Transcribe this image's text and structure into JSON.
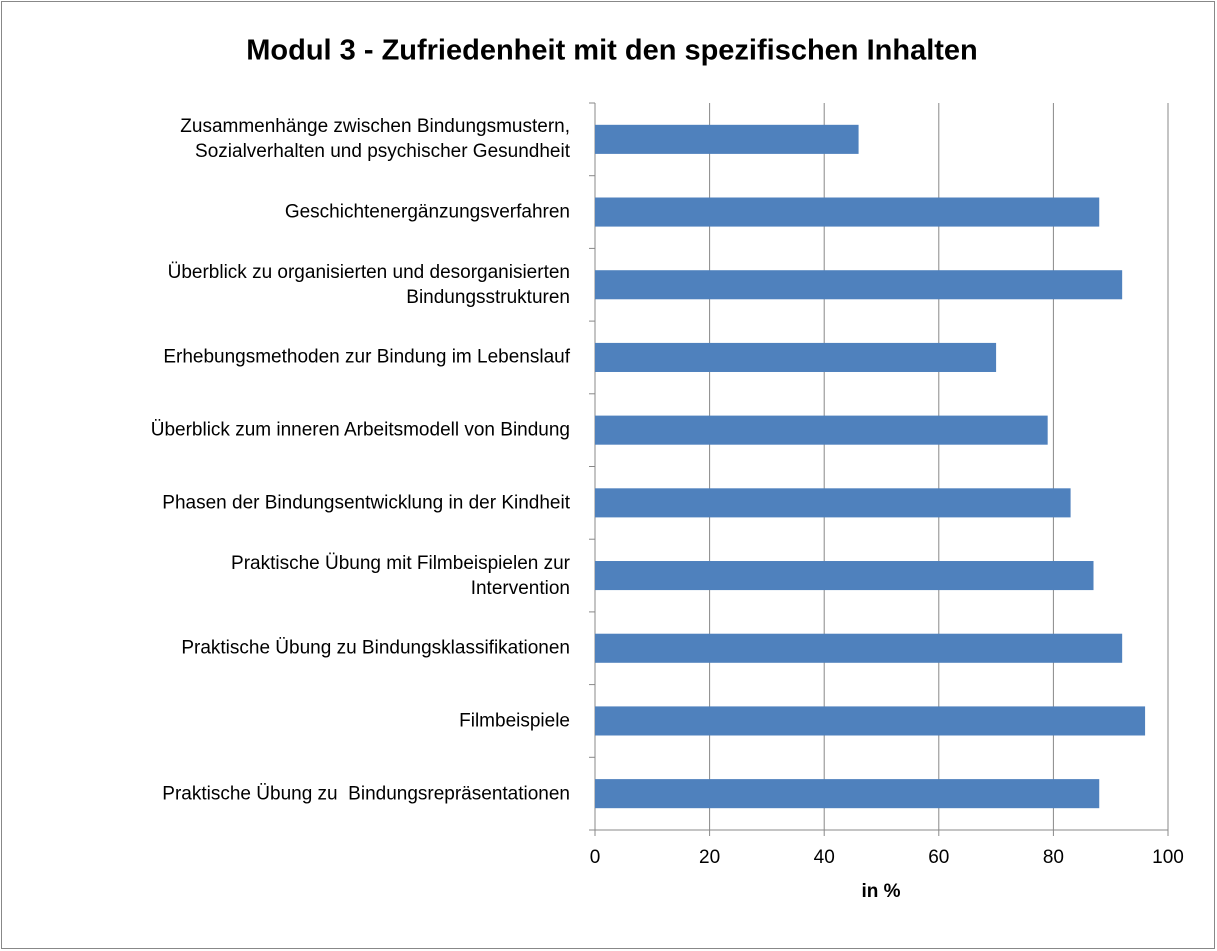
{
  "chart_data": {
    "type": "barh",
    "title": "Modul 3 - Zufriedenheit mit den spezifischen Inhalten",
    "x_label": "in %",
    "categories": [
      "Zusammenhänge zwischen Bindungsmustern,\nSozialverhalten und psychischer Gesundheit",
      "Geschichtenergänzungsverfahren",
      "Überblick zu organisierten und desorganisierten\nBindungsstrukturen",
      "Erhebungsmethoden zur Bindung im Lebenslauf",
      "Überblick zum inneren Arbeitsmodell von Bindung",
      "Phasen der Bindungsentwicklung in der Kindheit",
      "Praktische Übung mit Filmbeispielen zur\nIntervention",
      "Praktische Übung zu Bindungsklassifikationen",
      "Filmbeispiele",
      "Praktische Übung zu  Bindungsrepräsentationen"
    ],
    "values": [
      46,
      88,
      92,
      70,
      79,
      83,
      87,
      92,
      96,
      88
    ],
    "color": "#4f81bd",
    "xlim": [
      0,
      100
    ],
    "xticks": [
      0,
      20,
      40,
      60,
      80,
      100
    ],
    "grid": true
  }
}
